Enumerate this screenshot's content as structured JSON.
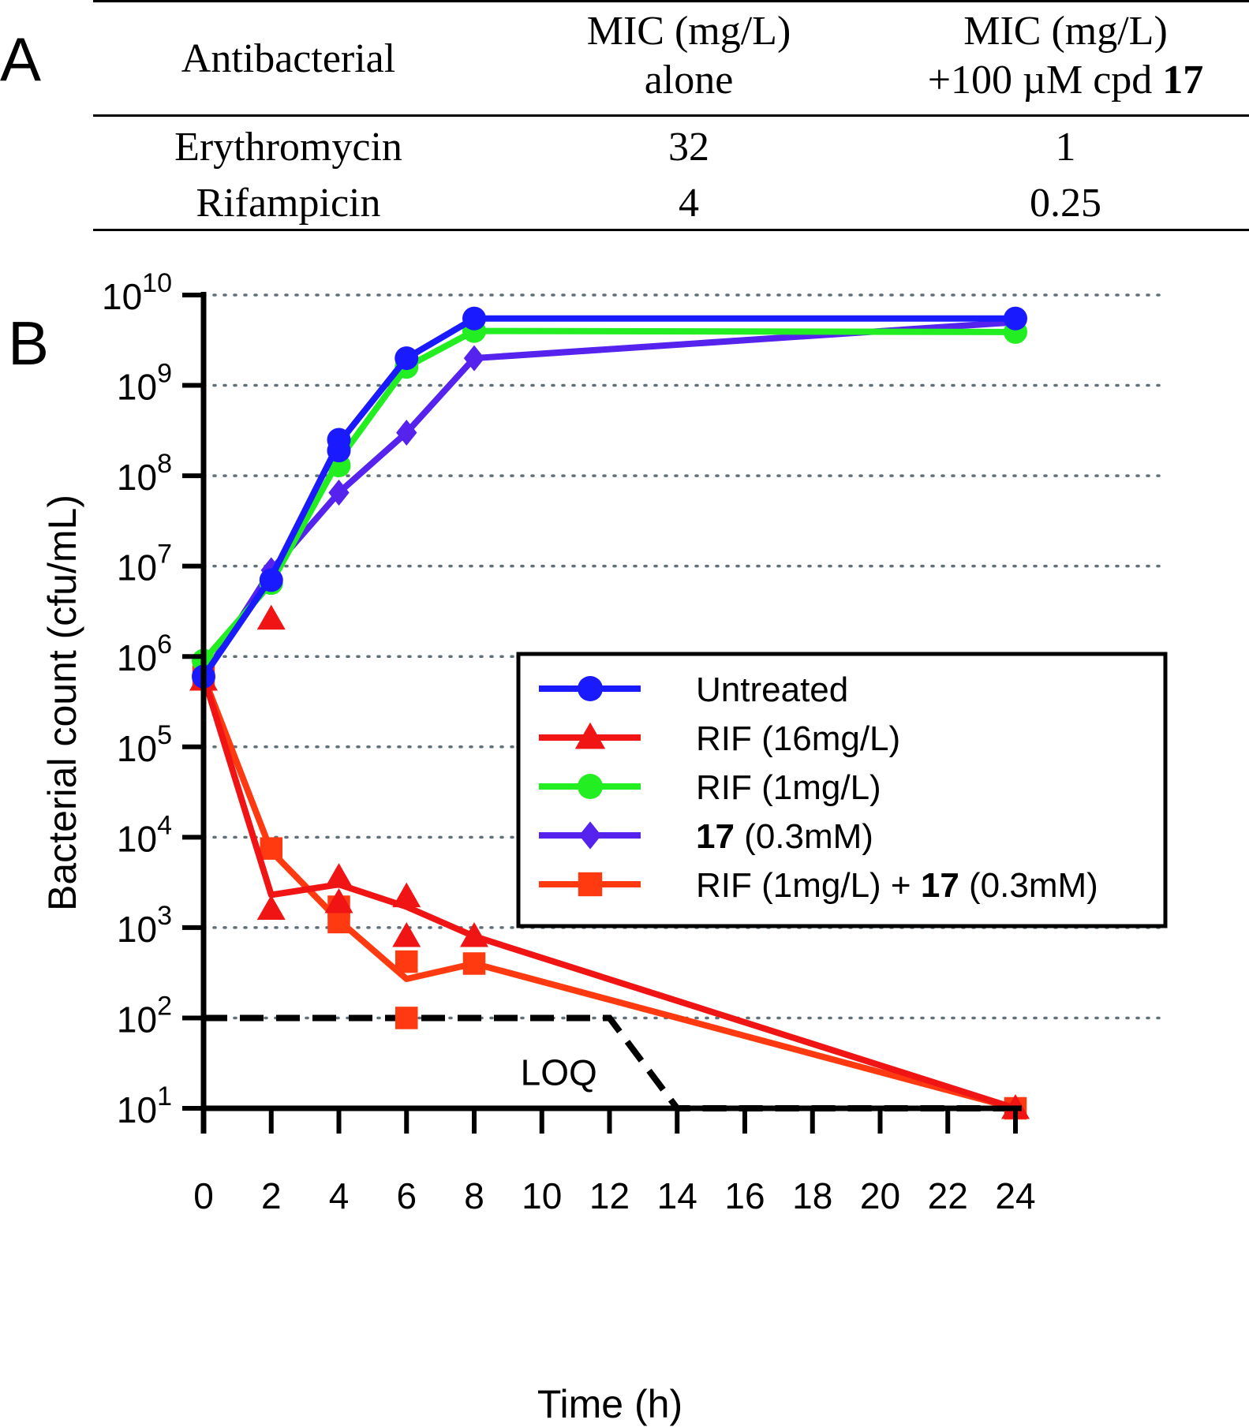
{
  "panel_labels": {
    "a": "A",
    "b": "B"
  },
  "mic_table": {
    "headers": {
      "col1": "Antibacterial",
      "col2_line1": "MIC (mg/L)",
      "col2_line2": "alone",
      "col3_line1": "MIC (mg/L)",
      "col3_line2_prefix": "+100 µM cpd ",
      "col3_line2_bold": "17"
    },
    "rows": [
      {
        "name": "Erythromycin",
        "alone": "32",
        "combo": "1"
      },
      {
        "name": "Rifampicin",
        "alone": "4",
        "combo": "0.25"
      }
    ]
  },
  "chart_data": {
    "type": "line",
    "y_scale": "log",
    "xlabel": "Time (h)",
    "ylabel": "Bacterial count (cfu/mL)",
    "xlim": [
      0,
      24
    ],
    "ylim_log10": [
      1,
      10
    ],
    "x_ticks": [
      "0",
      "2",
      "4",
      "6",
      "8",
      "10",
      "12",
      "14",
      "16",
      "18",
      "20",
      "22",
      "24"
    ],
    "x_tick_positions": [
      0,
      2,
      4,
      6,
      8,
      10,
      12,
      14,
      16,
      18,
      20,
      22,
      24
    ],
    "y_tick_exponents": [
      1,
      2,
      3,
      4,
      5,
      6,
      7,
      8,
      9,
      10
    ],
    "y_tick_base": "10",
    "grid": "horizontal dotted",
    "legend_position": "center-right",
    "series": [
      {
        "name": "Untreated",
        "name_bold": "",
        "name_suffix": "",
        "color": "#1a1aff",
        "marker": "circle",
        "points": [
          {
            "x": 0,
            "y": 600000
          },
          {
            "x": 2,
            "y": 7000000
          },
          {
            "x": 4,
            "y": 250000000
          },
          {
            "x": 4,
            "y": 190000000
          },
          {
            "x": 6,
            "y": 2000000000
          },
          {
            "x": 8,
            "y": 5500000000
          },
          {
            "x": 24,
            "y": 5500000000
          }
        ],
        "line": [
          {
            "x": 0,
            "y": 600000
          },
          {
            "x": 2,
            "y": 7500000
          },
          {
            "x": 4,
            "y": 230000000
          },
          {
            "x": 6,
            "y": 2000000000
          },
          {
            "x": 8,
            "y": 5500000000
          },
          {
            "x": 24,
            "y": 5500000000
          }
        ]
      },
      {
        "name": "RIF (16mg/L)",
        "name_bold": "",
        "name_suffix": "",
        "color": "#f01414",
        "marker": "triangle",
        "points": [
          {
            "x": 0,
            "y": 550000
          },
          {
            "x": 2,
            "y": 2600000
          },
          {
            "x": 2,
            "y": 1600
          },
          {
            "x": 4,
            "y": 3600
          },
          {
            "x": 4,
            "y": 1900
          },
          {
            "x": 6,
            "y": 2200
          },
          {
            "x": 6,
            "y": 800
          },
          {
            "x": 8,
            "y": 800
          },
          {
            "x": 24,
            "y": 10
          }
        ],
        "line": [
          {
            "x": 0,
            "y": 600000
          },
          {
            "x": 2,
            "y": 2300
          },
          {
            "x": 4,
            "y": 3000
          },
          {
            "x": 6,
            "y": 1700
          },
          {
            "x": 8,
            "y": 800
          },
          {
            "x": 24,
            "y": 10
          }
        ]
      },
      {
        "name": "RIF (1mg/L)",
        "name_bold": "",
        "name_suffix": "",
        "color": "#22ee22",
        "marker": "circle",
        "points": [
          {
            "x": 0,
            "y": 900000
          },
          {
            "x": 2,
            "y": 6500000
          },
          {
            "x": 4,
            "y": 130000000
          },
          {
            "x": 6,
            "y": 1600000000
          },
          {
            "x": 8,
            "y": 4000000000
          },
          {
            "x": 24,
            "y": 3900000000
          }
        ],
        "line": [
          {
            "x": 0,
            "y": 900000
          },
          {
            "x": 2,
            "y": 6500000
          },
          {
            "x": 4,
            "y": 150000000
          },
          {
            "x": 6,
            "y": 1600000000
          },
          {
            "x": 8,
            "y": 4000000000
          },
          {
            "x": 24,
            "y": 3900000000
          }
        ]
      },
      {
        "name": "",
        "name_bold": "17",
        "name_suffix": " (0.3mM)",
        "color": "#5522ee",
        "marker": "diamond",
        "points": [
          {
            "x": 0,
            "y": 600000
          },
          {
            "x": 2,
            "y": 9000000
          },
          {
            "x": 4,
            "y": 65000000
          },
          {
            "x": 6,
            "y": 300000000
          },
          {
            "x": 8,
            "y": 2000000000
          },
          {
            "x": 24,
            "y": 5000000000
          }
        ],
        "line": [
          {
            "x": 0,
            "y": 600000
          },
          {
            "x": 2,
            "y": 9000000
          },
          {
            "x": 4,
            "y": 65000000
          },
          {
            "x": 6,
            "y": 300000000
          },
          {
            "x": 8,
            "y": 2000000000
          },
          {
            "x": 24,
            "y": 5000000000
          }
        ]
      },
      {
        "name": "RIF (1mg/L) + ",
        "name_bold": "17",
        "name_suffix": " (0.3mM)",
        "color": "#ff3a10",
        "marker": "square",
        "points": [
          {
            "x": 0,
            "y": 600000
          },
          {
            "x": 2,
            "y": 7500
          },
          {
            "x": 4,
            "y": 1700
          },
          {
            "x": 4,
            "y": 1150
          },
          {
            "x": 6,
            "y": 420
          },
          {
            "x": 6,
            "y": 100
          },
          {
            "x": 8,
            "y": 400
          },
          {
            "x": 24,
            "y": 10
          }
        ],
        "line": [
          {
            "x": 0,
            "y": 600000
          },
          {
            "x": 2,
            "y": 7000
          },
          {
            "x": 4,
            "y": 1200
          },
          {
            "x": 6,
            "y": 270
          },
          {
            "x": 8,
            "y": 400
          },
          {
            "x": 24,
            "y": 10
          }
        ]
      }
    ],
    "loq": {
      "label": "LOQ",
      "line": [
        {
          "x": 0,
          "y": 100
        },
        {
          "x": 12,
          "y": 100
        },
        {
          "x": 14,
          "y": 10
        },
        {
          "x": 24,
          "y": 10
        }
      ],
      "label_at": {
        "x": 10.5,
        "y": 25
      }
    }
  }
}
